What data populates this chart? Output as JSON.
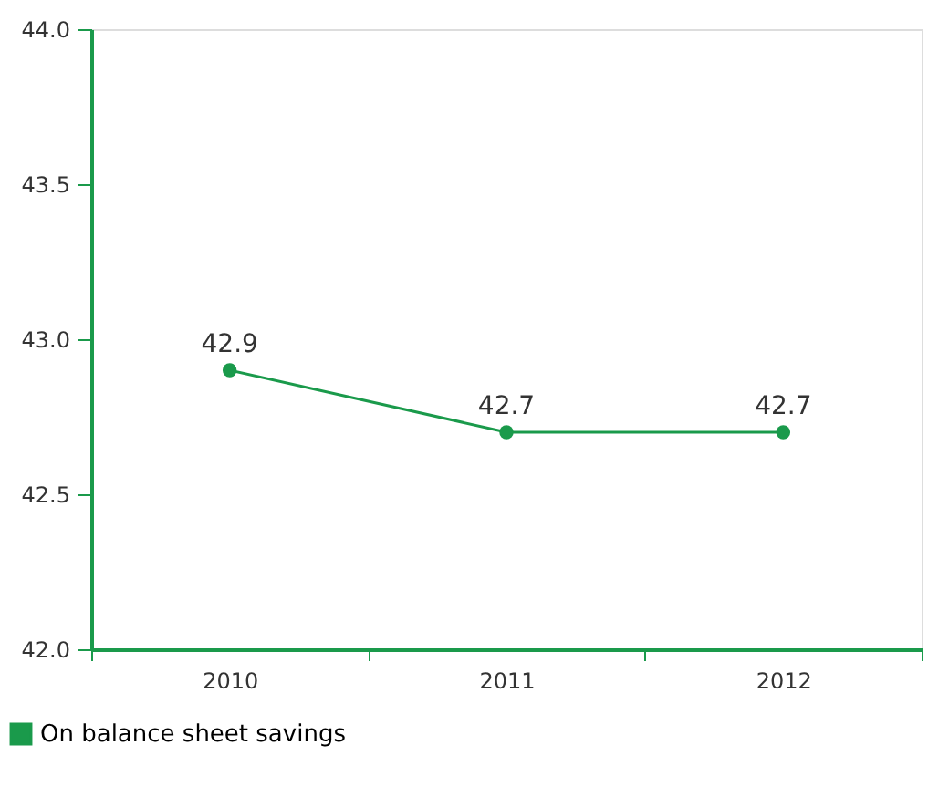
{
  "chart_data": {
    "type": "line",
    "categories": [
      "2010",
      "2011",
      "2012"
    ],
    "series": [
      {
        "name": "On balance sheet savings",
        "color": "#1a9a4b",
        "values": [
          42.9,
          42.7,
          42.7
        ]
      }
    ],
    "ylim": [
      42.0,
      44.0
    ],
    "yticks": [
      {
        "value": 42.0,
        "label": "42.0"
      },
      {
        "value": 42.5,
        "label": "42.5"
      },
      {
        "value": 43.0,
        "label": "43.0"
      },
      {
        "value": 43.5,
        "label": "43.5"
      },
      {
        "value": 44.0,
        "label": "44.0"
      }
    ],
    "data_labels": true,
    "marker": "circle",
    "line_style": "solid",
    "grid": false,
    "legend": "bottom left"
  }
}
